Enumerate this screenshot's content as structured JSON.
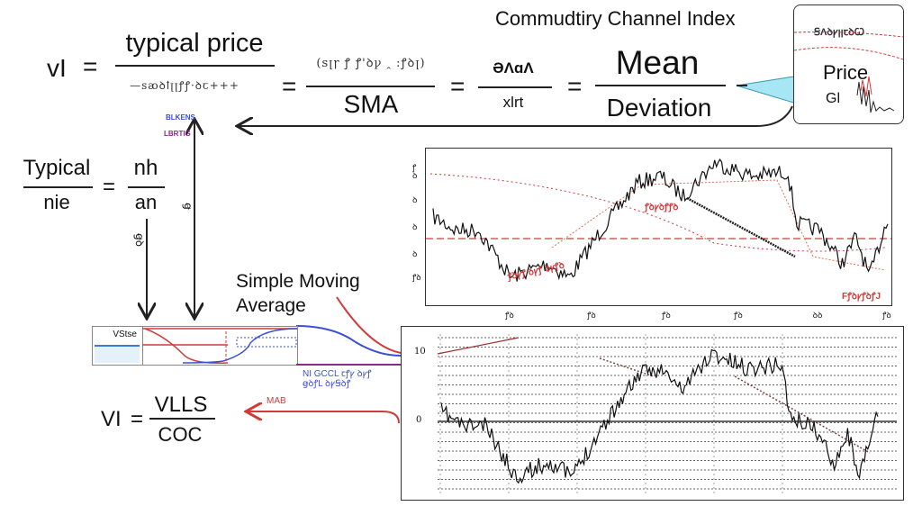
{
  "title": "Commudtiry Channel Index",
  "formula_top": {
    "lhs": "vI",
    "eq": "=",
    "frac1": {
      "numerator": "typical price",
      "denominator": "—ꜱꜵꝺꝉꞁꞁꝭꝭ·ꝺꞇ+++"
    },
    "frac2": {
      "numerator": "(ꜱꞁꞅ ꝭ ꝭꞌꝺꝩ ꞈ :ꝭꝺꞁ)",
      "denominator": "SMA"
    },
    "frac3": {
      "numerator": "ƏɅɑɅ",
      "denominator": "xlrt"
    },
    "frac4": {
      "numerator": "Mean",
      "denominator": "Deviation"
    }
  },
  "inset": {
    "top_label": "ꞨɅꝺꝩꞁꞁꞇꝺꞶ",
    "label": "Price",
    "sub_label": "Gl"
  },
  "small_labels": {
    "blue": "BLKENS",
    "purple": "LBRTIG",
    "rot1": "ꞡ",
    "rot2": "ꞡꝺ"
  },
  "formula_mid": {
    "numerator": "Typical",
    "denominator": "nie",
    "eq": "=",
    "numerator2": "nh",
    "denominator2": "an"
  },
  "sma": {
    "label_line1": "Simple Moving",
    "label_line2": "Average",
    "strip_label": "VStse",
    "blue_note_line1": "NI GCCL ꞇꝭꝩ ꝺꝩꝭ",
    "blue_note_line2": "ꞡꝺꝭL ꝺꝩꞨꝺꝭ"
  },
  "formula_bottom": {
    "lhs": "VI",
    "eq": "=",
    "numerator": "VLLS",
    "denominator": "COC"
  },
  "red_arrow_label": "MAB",
  "top_chart": {
    "y_ticks": [
      "ꝭ",
      "ꝺ",
      "ꝺ",
      "ꝺ",
      "ꝺ",
      "ꝭꝺ"
    ],
    "x_ticks": [
      "ꝭꝺ",
      "ꝭꝺ",
      "ꝭꝺ",
      "ꝭꝺ",
      "ꝺꝺ",
      "ꝭꝺ"
    ],
    "annotations": [
      "ꝭꝺꝩꝺꝭꝭꝺ",
      "ꝭꝺꝩꝭ ꝺꝩꝭ ꝺꝩꝭꝺ",
      "FꝭꝺꝩꝭꝺꝭJ"
    ]
  },
  "bottom_chart": {
    "y_ticks": [
      "10",
      "0"
    ]
  },
  "colors": {
    "accent_red": "#d23a3a",
    "blue": "#3a4fd8",
    "cyan": "#a6e6f5",
    "purple": "#8a2a8a"
  }
}
